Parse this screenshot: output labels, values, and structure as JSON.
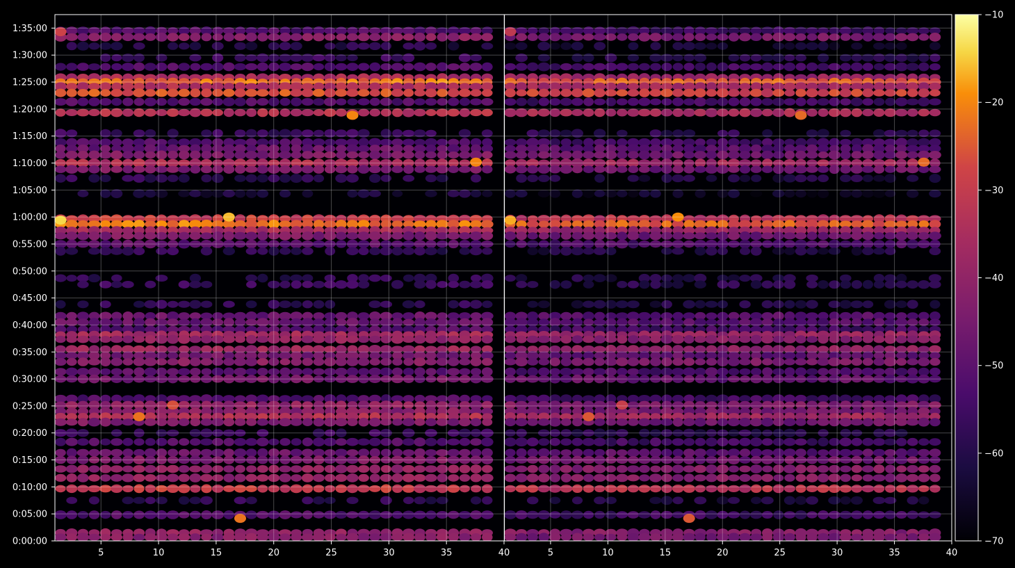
{
  "chart_data": {
    "type": "heatmap",
    "title": "",
    "xlabel": "",
    "ylabel": "",
    "grid": true,
    "colormap": "inferno",
    "background": "#000000",
    "panels": [
      {
        "name": "",
        "xlim": [
          1,
          40
        ],
        "x_ticks": [
          "5",
          "10",
          "15",
          "20",
          "25",
          "30",
          "35",
          "40"
        ],
        "x_tick_values": [
          5,
          10,
          15,
          20,
          25,
          30,
          35,
          40
        ]
      },
      {
        "name": "",
        "xlim": [
          1,
          40
        ],
        "x_ticks": [
          "5",
          "10",
          "15",
          "20",
          "25",
          "30",
          "35",
          "40"
        ],
        "x_tick_values": [
          5,
          10,
          15,
          20,
          25,
          30,
          35,
          40
        ]
      }
    ],
    "y_range_seconds": [
      0,
      5850
    ],
    "y_ticks": [
      "0:00:00",
      "0:05:00",
      "0:10:00",
      "0:15:00",
      "0:20:00",
      "0:25:00",
      "0:30:00",
      "0:35:00",
      "0:40:00",
      "0:45:00",
      "0:50:00",
      "0:55:00",
      "1:00:00",
      "1:05:00",
      "1:10:00",
      "1:15:00",
      "1:20:00",
      "1:25:00",
      "1:30:00",
      "1:35:00"
    ],
    "y_tick_values": [
      0,
      300,
      600,
      900,
      1200,
      1500,
      1800,
      2100,
      2400,
      2700,
      3000,
      3300,
      3600,
      3900,
      4200,
      4500,
      4800,
      5100,
      5400,
      5700
    ],
    "colorbar": {
      "min": -70,
      "max": -10,
      "ticks": [
        "−10",
        "−20",
        "−30",
        "−40",
        "−50",
        "−60",
        "−70"
      ],
      "tick_values": [
        -10,
        -20,
        -30,
        -40,
        -50,
        -60,
        -70
      ]
    },
    "bands": [
      {
        "time": 5670,
        "level": -52,
        "intensity": "medium"
      },
      {
        "time": 5600,
        "level": -42,
        "intensity": "medium"
      },
      {
        "time": 5500,
        "level": -60,
        "intensity": "low"
      },
      {
        "time": 5370,
        "level": -56,
        "intensity": "low"
      },
      {
        "time": 5270,
        "level": -52,
        "intensity": "medium"
      },
      {
        "time": 5150,
        "level": -36,
        "intensity": "high"
      },
      {
        "time": 5100,
        "level": -22,
        "intensity": "high"
      },
      {
        "time": 5050,
        "level": -34,
        "intensity": "high"
      },
      {
        "time": 4980,
        "level": -26,
        "intensity": "high"
      },
      {
        "time": 4880,
        "level": -52,
        "intensity": "medium"
      },
      {
        "time": 4760,
        "level": -33,
        "intensity": "high"
      },
      {
        "time": 4530,
        "level": -56,
        "intensity": "low"
      },
      {
        "time": 4430,
        "level": -52,
        "intensity": "medium"
      },
      {
        "time": 4360,
        "level": -48,
        "intensity": "medium"
      },
      {
        "time": 4290,
        "level": -44,
        "intensity": "medium"
      },
      {
        "time": 4200,
        "level": -34,
        "intensity": "high"
      },
      {
        "time": 4130,
        "level": -44,
        "intensity": "medium"
      },
      {
        "time": 4030,
        "level": -58,
        "intensity": "low"
      },
      {
        "time": 3860,
        "level": -62,
        "intensity": "low"
      },
      {
        "time": 3580,
        "level": -30,
        "intensity": "high"
      },
      {
        "time": 3520,
        "level": -22,
        "intensity": "high"
      },
      {
        "time": 3450,
        "level": -36,
        "intensity": "high"
      },
      {
        "time": 3390,
        "level": -44,
        "intensity": "medium"
      },
      {
        "time": 3300,
        "level": -50,
        "intensity": "medium"
      },
      {
        "time": 3220,
        "level": -58,
        "intensity": "low"
      },
      {
        "time": 2920,
        "level": -58,
        "intensity": "low"
      },
      {
        "time": 2850,
        "level": -56,
        "intensity": "low"
      },
      {
        "time": 2630,
        "level": -58,
        "intensity": "low"
      },
      {
        "time": 2500,
        "level": -48,
        "intensity": "medium"
      },
      {
        "time": 2430,
        "level": -48,
        "intensity": "medium"
      },
      {
        "time": 2350,
        "level": -52,
        "intensity": "medium"
      },
      {
        "time": 2290,
        "level": -36,
        "intensity": "high"
      },
      {
        "time": 2240,
        "level": -40,
        "intensity": "medium"
      },
      {
        "time": 2130,
        "level": -38,
        "intensity": "high"
      },
      {
        "time": 2060,
        "level": -46,
        "intensity": "medium"
      },
      {
        "time": 1990,
        "level": -42,
        "intensity": "medium"
      },
      {
        "time": 1880,
        "level": -50,
        "intensity": "medium"
      },
      {
        "time": 1800,
        "level": -46,
        "intensity": "medium"
      },
      {
        "time": 1580,
        "level": -52,
        "intensity": "medium"
      },
      {
        "time": 1510,
        "level": -40,
        "intensity": "medium"
      },
      {
        "time": 1440,
        "level": -42,
        "intensity": "medium"
      },
      {
        "time": 1380,
        "level": -34,
        "intensity": "high"
      },
      {
        "time": 1320,
        "level": -44,
        "intensity": "medium"
      },
      {
        "time": 1200,
        "level": -56,
        "intensity": "low"
      },
      {
        "time": 1100,
        "level": -52,
        "intensity": "medium"
      },
      {
        "time": 980,
        "level": -48,
        "intensity": "medium"
      },
      {
        "time": 900,
        "level": -44,
        "intensity": "medium"
      },
      {
        "time": 800,
        "level": -40,
        "intensity": "medium"
      },
      {
        "time": 700,
        "level": -40,
        "intensity": "medium"
      },
      {
        "time": 580,
        "level": -30,
        "intensity": "high"
      },
      {
        "time": 450,
        "level": -58,
        "intensity": "low"
      },
      {
        "time": 290,
        "level": -52,
        "intensity": "medium"
      },
      {
        "time": 90,
        "level": -40,
        "intensity": "medium"
      },
      {
        "time": 40,
        "level": -42,
        "intensity": "medium"
      }
    ],
    "hotspots": [
      {
        "x": 1,
        "time": 3565,
        "level": -14
      },
      {
        "x": 16,
        "time": 3600,
        "level": -16
      },
      {
        "x": 27,
        "time": 4730,
        "level": -20
      },
      {
        "x": 38,
        "time": 4210,
        "level": -20
      },
      {
        "x": 17,
        "time": 250,
        "level": -22
      },
      {
        "x": 8,
        "time": 1380,
        "level": -22
      },
      {
        "x": 11,
        "time": 1510,
        "level": -26
      },
      {
        "x": 1,
        "time": 5660,
        "level": -28
      }
    ]
  }
}
